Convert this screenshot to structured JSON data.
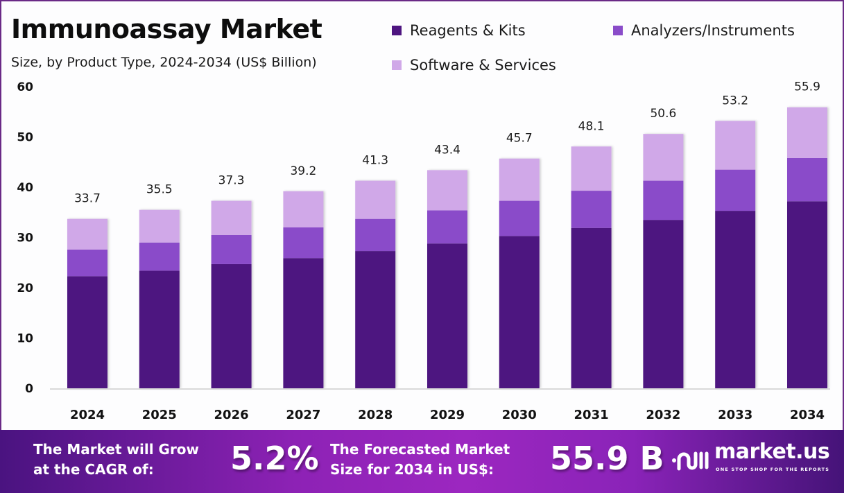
{
  "header": {
    "title": "Immunoassay Market",
    "subtitle": "Size, by Product Type, 2024-2034 (US$ Billion)"
  },
  "colors": {
    "reagents": "#4e1580",
    "analyzers": "#8a4cc9",
    "software": "#d0a8e8",
    "frame": "#6a2a86"
  },
  "chart_data": {
    "type": "bar",
    "stacked": true,
    "title": "Immunoassay Market",
    "subtitle": "Size, by Product Type, 2024-2034 (US$ Billion)",
    "xlabel": "",
    "ylabel": "",
    "ylim": [
      0,
      60
    ],
    "yticks": [
      0,
      10,
      20,
      30,
      40,
      50,
      60
    ],
    "grid": false,
    "legend_position": "top-right",
    "categories": [
      "2024",
      "2025",
      "2026",
      "2027",
      "2028",
      "2029",
      "2030",
      "2031",
      "2032",
      "2033",
      "2034"
    ],
    "series": [
      {
        "name": "Reagents & Kits",
        "color": "#4e1580",
        "values": [
          22.3,
          23.4,
          24.7,
          25.9,
          27.3,
          28.8,
          30.3,
          31.9,
          33.5,
          35.3,
          37.2
        ]
      },
      {
        "name": "Analyzers/Instruments",
        "color": "#8a4cc9",
        "values": [
          5.3,
          5.6,
          5.8,
          6.1,
          6.4,
          6.6,
          7.0,
          7.4,
          7.8,
          8.2,
          8.6
        ]
      },
      {
        "name": "Software & Services",
        "color": "#d0a8e8",
        "values": [
          6.1,
          6.5,
          6.8,
          7.2,
          7.6,
          8.0,
          8.4,
          8.8,
          9.3,
          9.7,
          10.1
        ]
      }
    ],
    "totals": [
      "33.7",
      "35.5",
      "37.3",
      "39.2",
      "41.3",
      "43.4",
      "45.7",
      "48.1",
      "50.6",
      "53.2",
      "55.9"
    ]
  },
  "footer": {
    "cagr_label_line1": "The Market will Grow",
    "cagr_label_line2": "at the CAGR of:",
    "cagr_value": "5.2%",
    "forecast_label_line1": "The Forecasted Market",
    "forecast_label_line2": "Size for 2034 in US$:",
    "forecast_value": "55.9 B",
    "brand_name": "market.us",
    "brand_tagline": "ONE STOP SHOP FOR THE REPORTS"
  }
}
